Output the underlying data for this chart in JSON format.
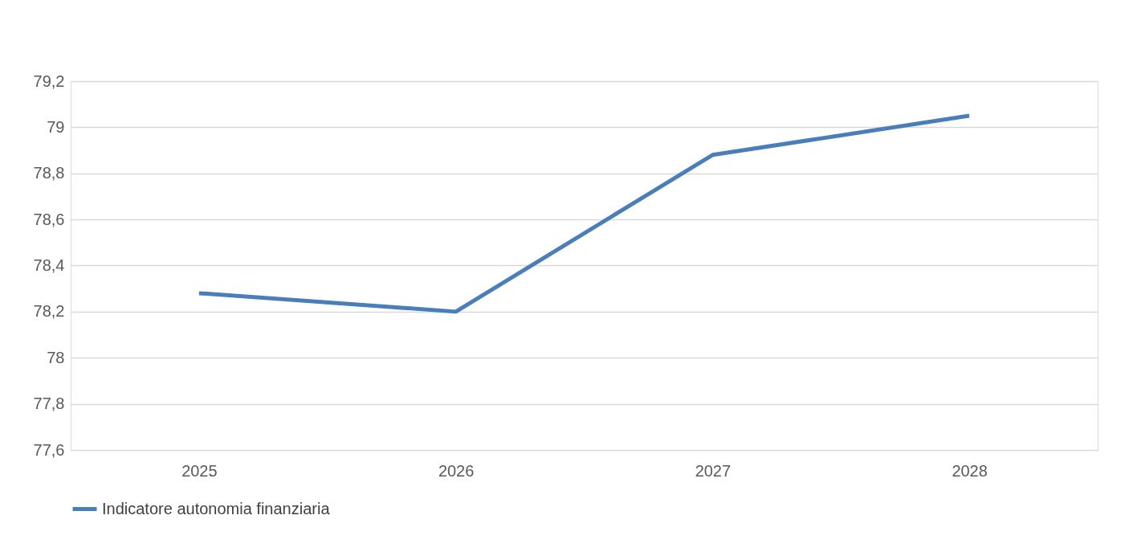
{
  "chart_data": {
    "type": "line",
    "categories": [
      "2025",
      "2026",
      "2027",
      "2028"
    ],
    "series": [
      {
        "name": "Indicatore autonomia finanziaria",
        "color": "#4a7ebb",
        "values": [
          78.28,
          78.2,
          78.88,
          79.05
        ]
      }
    ],
    "ylim": [
      77.6,
      79.2
    ],
    "yticks": [
      {
        "value": 77.6,
        "label": "77,6"
      },
      {
        "value": 77.8,
        "label": "77,8"
      },
      {
        "value": 78,
        "label": "78"
      },
      {
        "value": 78.2,
        "label": "78,2"
      },
      {
        "value": 78.4,
        "label": "78,4"
      },
      {
        "value": 78.6,
        "label": "78,6"
      },
      {
        "value": 78.8,
        "label": "78,8"
      },
      {
        "value": 79,
        "label": "79"
      },
      {
        "value": 79.2,
        "label": "79,2"
      }
    ],
    "grid": "y",
    "legend": "bottom",
    "marker": "none",
    "line_style": "solid"
  }
}
